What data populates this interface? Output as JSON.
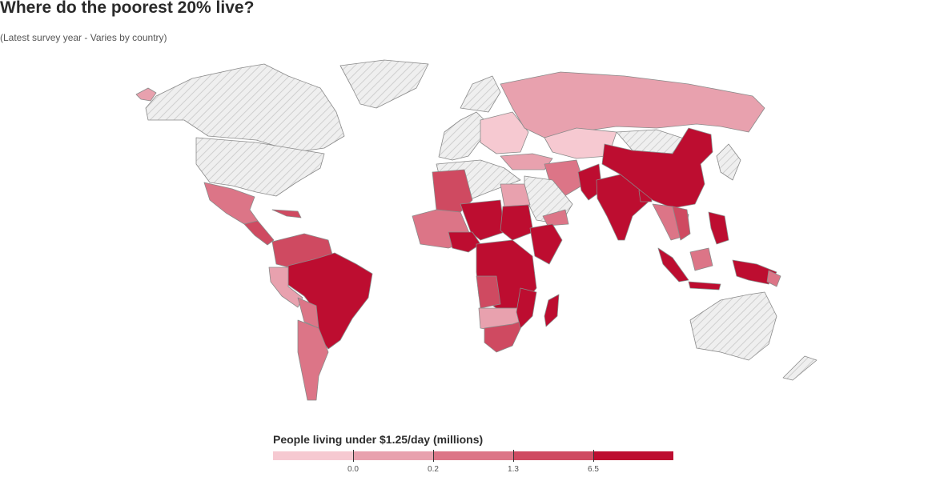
{
  "header": {
    "title": "Where do the poorest 20% live?",
    "subtitle": "(Latest survey year - Varies by country)"
  },
  "legend": {
    "title": "People living under $1.25/day (millions)",
    "thresholds": [
      "0.0",
      "0.2",
      "1.3",
      "6.5"
    ],
    "colors": [
      "#f6c9d1",
      "#e8a1ae",
      "#dc7587",
      "#cf4a61",
      "#bd0d30"
    ]
  },
  "colors": {
    "no_data_fill": "#efefef",
    "no_data_hatch": "#cfcfcf",
    "country_border": "#8a8a8a"
  }
}
